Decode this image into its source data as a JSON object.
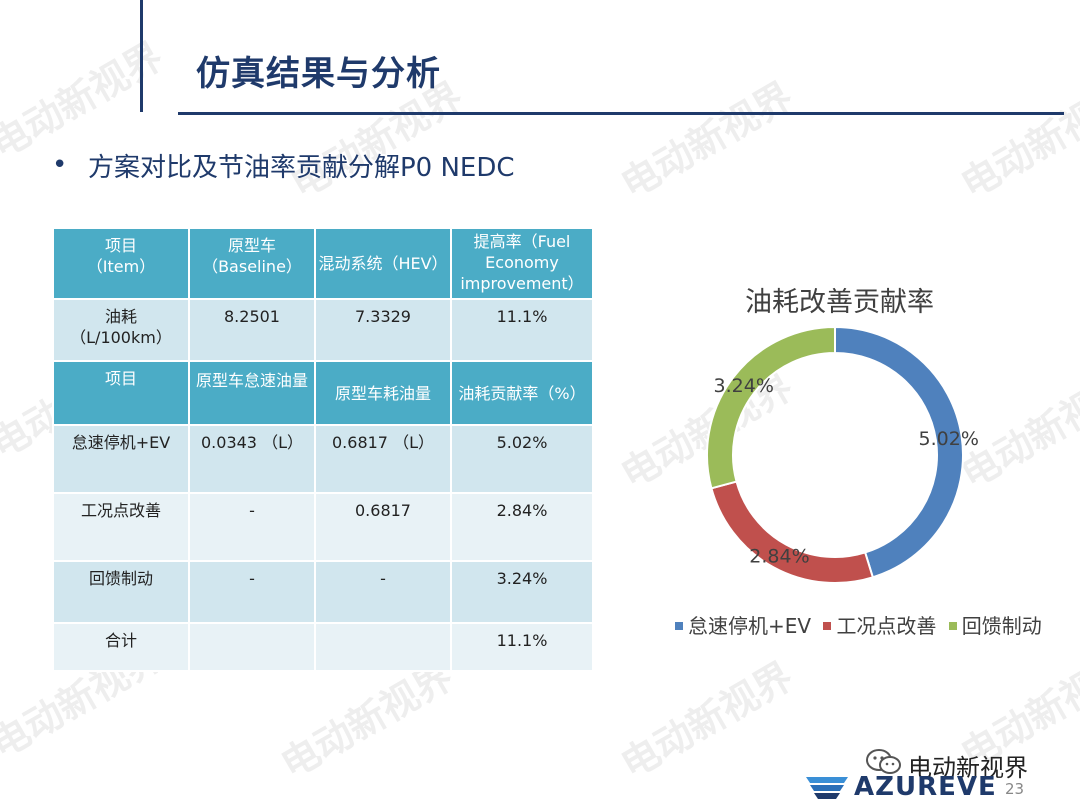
{
  "header": {
    "title": "仿真结果与分析"
  },
  "subtitle": {
    "bullet": "•",
    "text": "方案对比及节油率贡献分解P0 NEDC"
  },
  "table": {
    "rows": [
      [
        "项目\n（Item）",
        "原型车\n（Baseline）",
        "混动系统（HEV）",
        "提高率（Fuel Economy improvement）"
      ],
      [
        "油耗\n（L/100km）",
        "8.2501",
        "7.3329",
        "11.1%"
      ],
      [
        "项目",
        "原型车怠速油量",
        "原型车耗油量",
        "油耗贡献率（%）"
      ],
      [
        "怠速停机+EV",
        "0.0343 （L）",
        "0.6817 （L）",
        "5.02%"
      ],
      [
        "工况点改善",
        "-",
        "0.6817",
        "2.84%"
      ],
      [
        "回馈制动",
        "-",
        "-",
        "3.24%"
      ],
      [
        "合计",
        "",
        "",
        "11.1%"
      ]
    ]
  },
  "chart_data": {
    "type": "pie",
    "donut": true,
    "title": "油耗改善贡献率",
    "categories": [
      "怠速停机+EV",
      "工况点改善",
      "回馈制动"
    ],
    "values": [
      5.02,
      2.84,
      3.24
    ],
    "labels": [
      "5.02%",
      "2.84%",
      "3.24%"
    ],
    "colors": [
      "#4f81bd",
      "#c0504d",
      "#9bbb59"
    ],
    "legend": "bottom"
  },
  "watermark": {
    "text": "电动新视界"
  },
  "footer": {
    "wechat_text": "电动新视界",
    "logo_text": "AZUREVE",
    "page_number": "23"
  },
  "colors": {
    "brand": "#1f3a6b",
    "table_header": "#4bacc6",
    "row_a": "#d1e6ee",
    "row_b": "#e8f2f6"
  }
}
